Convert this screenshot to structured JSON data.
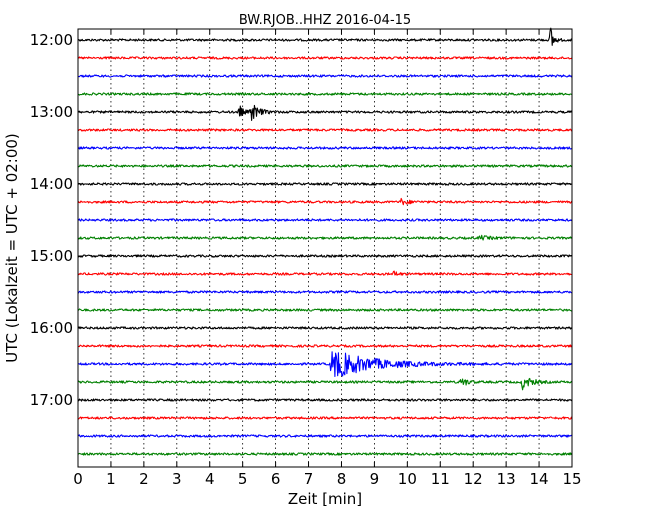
{
  "chart_data": {
    "type": "line",
    "title": "BW.RJOB..HHZ 2016-04-15",
    "xlabel": "Zeit  [min]",
    "ylabel": "UTC (Lokalzeit = UTC + 02:00)",
    "xlim": [
      0,
      15
    ],
    "x_ticks": [
      "0",
      "1",
      "2",
      "3",
      "4",
      "5",
      "6",
      "7",
      "8",
      "9",
      "10",
      "11",
      "12",
      "13",
      "14",
      "15"
    ],
    "y_ticks": [
      "12:00",
      "13:00",
      "14:00",
      "15:00",
      "16:00",
      "17:00"
    ],
    "grid": "vertical dotted",
    "trace_colors": [
      "#000000",
      "#ff0000",
      "#0000ff",
      "#008000"
    ],
    "traces": [
      {
        "start": "12:00",
        "events": [
          {
            "t": 14.35,
            "amp": 14,
            "dur": 0.25
          }
        ]
      },
      {
        "start": "12:15",
        "events": []
      },
      {
        "start": "12:30",
        "events": []
      },
      {
        "start": "12:45",
        "events": []
      },
      {
        "start": "13:00",
        "events": [
          {
            "t": 4.9,
            "amp": 7,
            "dur": 0.3
          },
          {
            "t": 5.25,
            "amp": 10,
            "dur": 0.6
          }
        ]
      },
      {
        "start": "13:15",
        "events": []
      },
      {
        "start": "13:30",
        "events": []
      },
      {
        "start": "13:45",
        "events": []
      },
      {
        "start": "14:00",
        "events": []
      },
      {
        "start": "14:15",
        "events": [
          {
            "t": 9.8,
            "amp": 3,
            "dur": 0.6
          }
        ]
      },
      {
        "start": "14:30",
        "events": []
      },
      {
        "start": "14:45",
        "events": [
          {
            "t": 12.2,
            "amp": 2,
            "dur": 0.8
          }
        ]
      },
      {
        "start": "15:00",
        "events": []
      },
      {
        "start": "15:15",
        "events": [
          {
            "t": 9.6,
            "amp": 3,
            "dur": 0.3
          }
        ]
      },
      {
        "start": "15:30",
        "events": []
      },
      {
        "start": "15:45",
        "events": []
      },
      {
        "start": "16:00",
        "events": []
      },
      {
        "start": "16:15",
        "events": []
      },
      {
        "start": "16:30",
        "events": [
          {
            "t": 7.7,
            "amp": 15,
            "dur": 3.2
          }
        ]
      },
      {
        "start": "16:45",
        "events": [
          {
            "t": 11.65,
            "amp": 6,
            "dur": 0.4
          },
          {
            "t": 13.5,
            "amp": 7,
            "dur": 0.7
          }
        ]
      },
      {
        "start": "17:00",
        "events": []
      },
      {
        "start": "17:15",
        "events": []
      },
      {
        "start": "17:30",
        "events": []
      },
      {
        "start": "17:45",
        "events": []
      }
    ]
  }
}
